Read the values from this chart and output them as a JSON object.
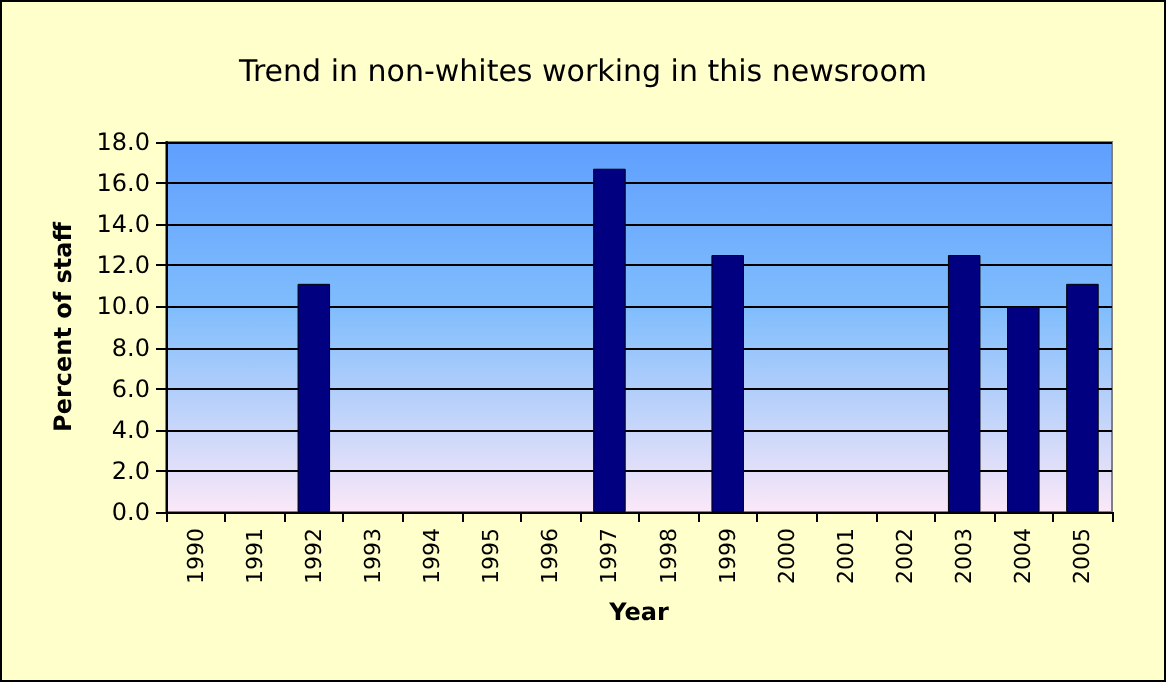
{
  "chart_data": {
    "type": "bar",
    "title": "Trend in non-whites working in this newsroom",
    "xlabel": "Year",
    "ylabel": "Percent of staff",
    "categories": [
      "1990",
      "1991",
      "1992",
      "1993",
      "1994",
      "1995",
      "1996",
      "1997",
      "1998",
      "1999",
      "2000",
      "2001",
      "2002",
      "2003",
      "2004",
      "2005"
    ],
    "values": [
      null,
      null,
      11.1,
      null,
      null,
      null,
      null,
      16.7,
      null,
      12.5,
      null,
      null,
      null,
      12.5,
      10.0,
      11.1
    ],
    "color": "#000080",
    "ylim": [
      0,
      18
    ],
    "yticks": [
      {
        "value": 0,
        "label": "0.0"
      },
      {
        "value": 2,
        "label": "2.0"
      },
      {
        "value": 4,
        "label": "4.0"
      },
      {
        "value": 6,
        "label": "6.0"
      },
      {
        "value": 8,
        "label": "8.0"
      },
      {
        "value": 10,
        "label": "10.0"
      },
      {
        "value": 12,
        "label": "12.0"
      },
      {
        "value": 14,
        "label": "14.0"
      },
      {
        "value": 16,
        "label": "16.0"
      },
      {
        "value": 18,
        "label": "18.0"
      }
    ],
    "grid": "y"
  }
}
